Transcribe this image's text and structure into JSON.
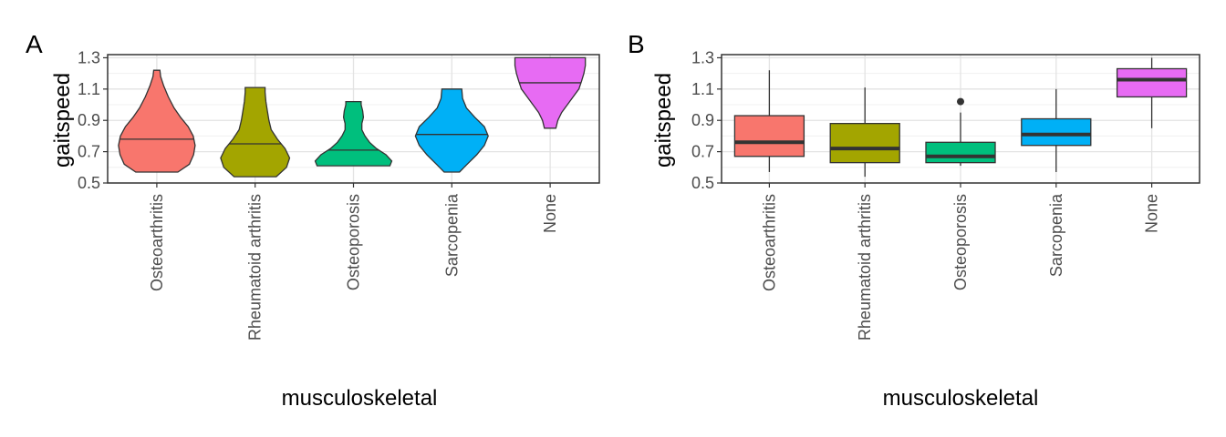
{
  "chart_data": [
    {
      "panel": "A",
      "type": "violin",
      "xlabel": "musculoskeletal",
      "ylabel": "gaitspeed",
      "ylim": [
        0.5,
        1.32
      ],
      "yticks": [
        "0.5",
        "0.7",
        "0.9",
        "1.1",
        "1.3"
      ],
      "grid": true,
      "categories": [
        "Osteoarthritis",
        "Rheumatoid arthritis",
        "Osteoporosis",
        "Sarcopenia",
        "None"
      ],
      "colors": [
        "#F8766D",
        "#A3A500",
        "#00BF7D",
        "#00B0F6",
        "#E76BF3"
      ],
      "groups": [
        {
          "name": "Osteoarthritis",
          "min": 0.57,
          "max": 1.22,
          "median": 0.78,
          "density": [
            [
              0.57,
              0.55
            ],
            [
              0.62,
              0.85
            ],
            [
              0.68,
              0.96
            ],
            [
              0.74,
              1.0
            ],
            [
              0.8,
              0.95
            ],
            [
              0.86,
              0.82
            ],
            [
              0.92,
              0.62
            ],
            [
              0.98,
              0.45
            ],
            [
              1.05,
              0.3
            ],
            [
              1.12,
              0.18
            ],
            [
              1.18,
              0.1
            ],
            [
              1.22,
              0.08
            ]
          ]
        },
        {
          "name": "Rheumatoid arthritis",
          "min": 0.54,
          "max": 1.11,
          "median": 0.75,
          "density": [
            [
              0.54,
              0.55
            ],
            [
              0.6,
              0.82
            ],
            [
              0.66,
              0.9
            ],
            [
              0.72,
              0.78
            ],
            [
              0.78,
              0.58
            ],
            [
              0.84,
              0.42
            ],
            [
              0.9,
              0.36
            ],
            [
              0.96,
              0.32
            ],
            [
              1.02,
              0.28
            ],
            [
              1.08,
              0.26
            ],
            [
              1.11,
              0.26
            ]
          ]
        },
        {
          "name": "Osteoporosis",
          "min": 0.61,
          "max": 1.02,
          "median": 0.71,
          "density": [
            [
              0.61,
              0.95
            ],
            [
              0.64,
              1.0
            ],
            [
              0.68,
              0.85
            ],
            [
              0.72,
              0.6
            ],
            [
              0.76,
              0.42
            ],
            [
              0.8,
              0.3
            ],
            [
              0.84,
              0.22
            ],
            [
              0.88,
              0.22
            ],
            [
              0.92,
              0.26
            ],
            [
              0.96,
              0.24
            ],
            [
              1.0,
              0.2
            ],
            [
              1.02,
              0.2
            ]
          ]
        },
        {
          "name": "Sarcopenia",
          "min": 0.57,
          "max": 1.1,
          "median": 0.81,
          "density": [
            [
              0.57,
              0.2
            ],
            [
              0.62,
              0.4
            ],
            [
              0.68,
              0.65
            ],
            [
              0.74,
              0.85
            ],
            [
              0.8,
              0.95
            ],
            [
              0.86,
              0.85
            ],
            [
              0.92,
              0.6
            ],
            [
              0.98,
              0.38
            ],
            [
              1.04,
              0.28
            ],
            [
              1.1,
              0.26
            ]
          ]
        },
        {
          "name": "None",
          "min": 0.85,
          "max": 1.3,
          "median": 1.14,
          "density": [
            [
              0.85,
              0.15
            ],
            [
              0.9,
              0.2
            ],
            [
              0.95,
              0.3
            ],
            [
              1.0,
              0.45
            ],
            [
              1.05,
              0.6
            ],
            [
              1.1,
              0.75
            ],
            [
              1.15,
              0.82
            ],
            [
              1.2,
              0.88
            ],
            [
              1.25,
              0.92
            ],
            [
              1.3,
              0.92
            ]
          ]
        }
      ]
    },
    {
      "panel": "B",
      "type": "box",
      "xlabel": "musculoskeletal",
      "ylabel": "gaitspeed",
      "ylim": [
        0.5,
        1.32
      ],
      "yticks": [
        "0.5",
        "0.7",
        "0.9",
        "1.1",
        "1.3"
      ],
      "grid": true,
      "categories": [
        "Osteoarthritis",
        "Rheumatoid arthritis",
        "Osteoporosis",
        "Sarcopenia",
        "None"
      ],
      "colors": [
        "#F8766D",
        "#A3A500",
        "#00BF7D",
        "#00B0F6",
        "#E76BF3"
      ],
      "groups": [
        {
          "name": "Osteoarthritis",
          "whisker_low": 0.57,
          "q1": 0.67,
          "median": 0.76,
          "q3": 0.93,
          "whisker_high": 1.22,
          "outliers": []
        },
        {
          "name": "Rheumatoid arthritis",
          "whisker_low": 0.54,
          "q1": 0.63,
          "median": 0.72,
          "q3": 0.88,
          "whisker_high": 1.11,
          "outliers": []
        },
        {
          "name": "Osteoporosis",
          "whisker_low": 0.61,
          "q1": 0.63,
          "median": 0.67,
          "q3": 0.76,
          "whisker_high": 0.95,
          "outliers": [
            1.02
          ]
        },
        {
          "name": "Sarcopenia",
          "whisker_low": 0.57,
          "q1": 0.74,
          "median": 0.81,
          "q3": 0.91,
          "whisker_high": 1.1,
          "outliers": []
        },
        {
          "name": "None",
          "whisker_low": 0.85,
          "q1": 1.05,
          "median": 1.16,
          "q3": 1.23,
          "whisker_high": 1.3,
          "outliers": []
        }
      ]
    }
  ]
}
